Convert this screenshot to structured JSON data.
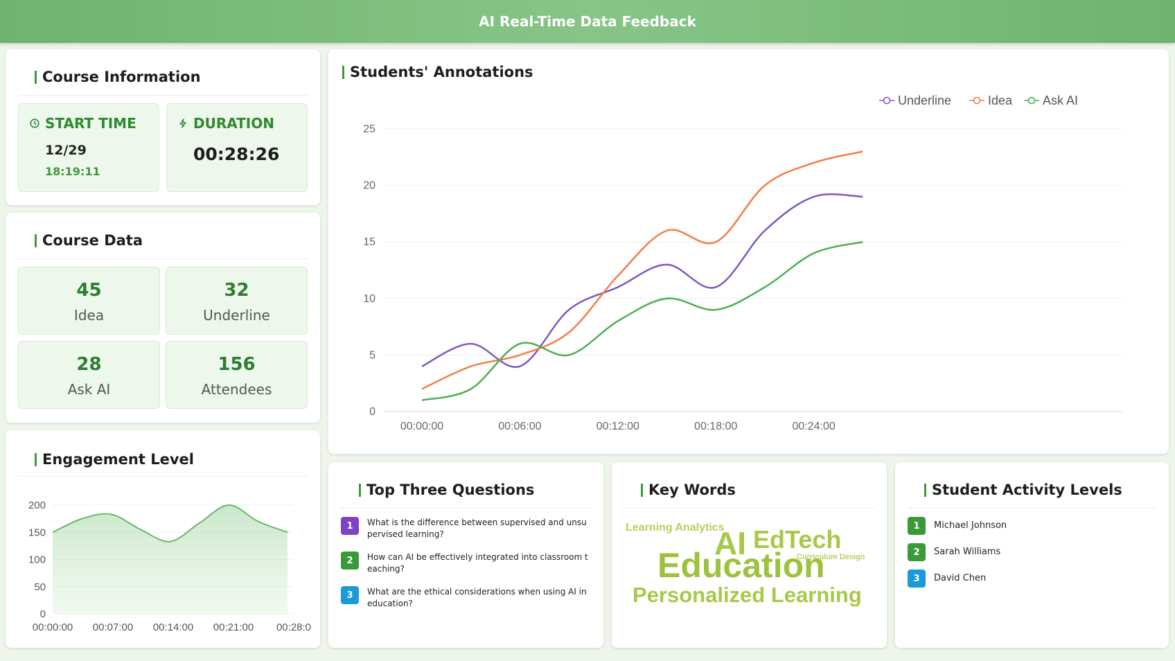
{
  "header": {
    "title": "AI Real-Time Data Feedback"
  },
  "course_info": {
    "title": "Course Information",
    "start_label": "START TIME",
    "start_date": "12/29",
    "start_time": "18:19:11",
    "duration_label": "DURATION",
    "duration_value": "00:28:26"
  },
  "course_data": {
    "title": "Course Data",
    "stats": [
      {
        "value": "45",
        "label": "Idea"
      },
      {
        "value": "32",
        "label": "Underline"
      },
      {
        "value": "28",
        "label": "Ask AI"
      },
      {
        "value": "156",
        "label": "Attendees"
      }
    ]
  },
  "engagement": {
    "title": "Engagement Level"
  },
  "annotations": {
    "title": "Students' Annotations"
  },
  "questions": {
    "title": "Top Three Questions",
    "items": [
      {
        "num": "1",
        "color": "#7b44c4",
        "text": "What is the difference between supervised and unsupervised learning?"
      },
      {
        "num": "2",
        "color": "#3a9a3a",
        "text": "How can AI be effectively integrated into classroom teaching?"
      },
      {
        "num": "3",
        "color": "#1a9bd7",
        "text": "What are the ethical considerations when using AI in education?"
      }
    ]
  },
  "keywords": {
    "title": "Key Words",
    "words": [
      "Learning Analytics",
      "AI",
      "EdTech",
      "Curriculum Design",
      "Education",
      "Personalized Learning"
    ]
  },
  "activity": {
    "title": "Student Activity Levels",
    "students": [
      {
        "num": "1",
        "name": "Michael Johnson"
      },
      {
        "num": "2",
        "name": "Sarah Williams"
      },
      {
        "num": "3",
        "name": "David Chen"
      }
    ]
  },
  "colors": {
    "underline": "#7e57c2",
    "idea": "#f47c48",
    "ask_ai": "#4caf50",
    "engagement": "#6ab86a",
    "accent": "#2e7d32"
  },
  "chart_data": [
    {
      "type": "line",
      "title": "Students' Annotations",
      "x": [
        "00:00:00",
        "00:03:00",
        "00:06:00",
        "00:09:00",
        "00:12:00",
        "00:15:00",
        "00:18:00",
        "00:21:00",
        "00:24:00",
        "00:27:00"
      ],
      "xticks": [
        "00:00:00",
        "00:06:00",
        "00:12:00",
        "00:18:00",
        "00:24:00"
      ],
      "ylim": [
        0,
        25
      ],
      "yticks": [
        0,
        5,
        10,
        15,
        20,
        25
      ],
      "grid": true,
      "legend_position": "top-right",
      "series": [
        {
          "name": "Underline",
          "values": [
            4,
            6,
            4,
            9,
            11,
            13,
            11,
            16,
            19,
            19
          ]
        },
        {
          "name": "Idea",
          "values": [
            2,
            4,
            5,
            7,
            12,
            16,
            15,
            20,
            22,
            23
          ]
        },
        {
          "name": "Ask AI",
          "values": [
            1,
            2,
            6,
            5,
            8,
            10,
            9,
            11,
            14,
            15
          ]
        }
      ]
    },
    {
      "type": "area",
      "title": "Engagement Level",
      "x": [
        "00:00:00",
        "00:03:30",
        "00:07:00",
        "00:10:30",
        "00:14:00",
        "00:17:30",
        "00:21:00",
        "00:24:30",
        "00:28:00"
      ],
      "xticks": [
        "00:00:00",
        "00:07:00",
        "00:14:00",
        "00:21:00",
        "00:28:0"
      ],
      "ylim": [
        0,
        200
      ],
      "yticks": [
        0,
        50,
        100,
        150,
        200
      ],
      "grid": true,
      "series": [
        {
          "values": [
            150,
            175,
            183,
            155,
            133,
            167,
            200,
            170,
            150
          ]
        }
      ]
    }
  ]
}
